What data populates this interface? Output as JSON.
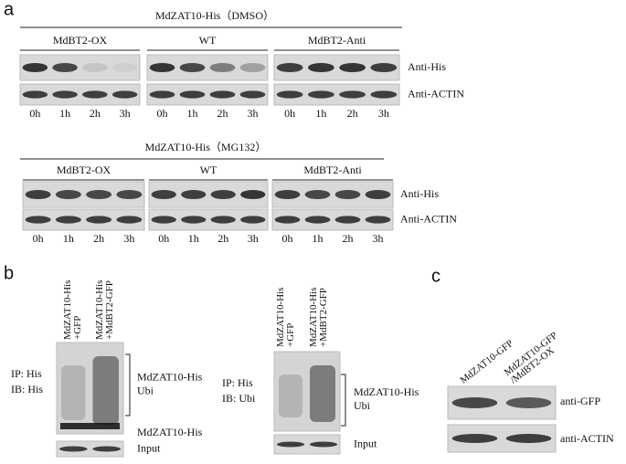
{
  "panel_a": {
    "label": "a",
    "blocks": [
      {
        "title": "MdZAT10-His（DMSO）",
        "groups": [
          "MdBT2-OX",
          "WT",
          "MdBT2-Anti"
        ],
        "rows": [
          "Anti-His",
          "Anti-ACTIN"
        ],
        "times": [
          "0h",
          "1h",
          "2h",
          "3h"
        ]
      },
      {
        "title": "MdZAT10-His（MG132）",
        "groups": [
          "MdBT2-OX",
          "WT",
          "MdBT2-Anti"
        ],
        "rows": [
          "Anti-His",
          "Anti-ACTIN"
        ],
        "times": [
          "0h",
          "1h",
          "2h",
          "3h"
        ]
      }
    ]
  },
  "panel_b": {
    "label": "b",
    "blots": [
      {
        "lanes": [
          [
            "MdZAT10-His",
            "+GFP"
          ],
          [
            "MdZAT10-His",
            "+MdBT2-GFP"
          ]
        ],
        "ip": "IP:  His",
        "ib": "IB:  His",
        "bracket": [
          "MdZAT10-His",
          "Ubi"
        ],
        "band": "MdZAT10-His",
        "input": "Input"
      },
      {
        "lanes": [
          [
            "MdZAT10-His",
            "+GFP"
          ],
          [
            "MdZAT10-His",
            "+MdBT2-GFP"
          ]
        ],
        "ip": "IP:  His",
        "ib": "IB:  Ubi",
        "bracket": [
          "MdZAT10-His",
          "Ubi"
        ],
        "input": "Input"
      }
    ]
  },
  "panel_c": {
    "label": "c",
    "lanes": [
      [
        "MdZAT10-GFP"
      ],
      [
        "MdZAT10-GFP",
        "/MdBT2-OX"
      ]
    ],
    "rows": [
      "anti-GFP",
      "anti-ACTIN"
    ]
  }
}
